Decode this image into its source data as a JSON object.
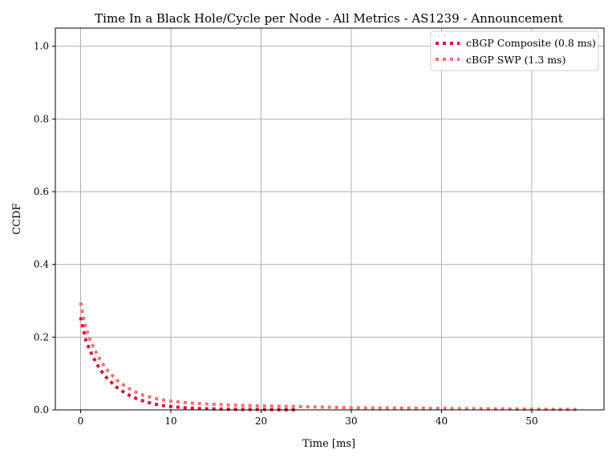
{
  "chart_data": {
    "type": "line",
    "title": "Time In a Black Hole/Cycle per Node - All Metrics - AS1239 - Announcement",
    "xlabel": "Time [ms]",
    "ylabel": "CCDF",
    "xlim": [
      -2.8,
      58
    ],
    "ylim": [
      0,
      1.05
    ],
    "xticks": [
      0,
      10,
      20,
      30,
      40,
      50
    ],
    "yticks": [
      0.0,
      0.2,
      0.4,
      0.6,
      0.8,
      1.0
    ],
    "xtick_labels": [
      "0",
      "10",
      "20",
      "30",
      "40",
      "50"
    ],
    "ytick_labels": [
      "0.0",
      "0.2",
      "0.4",
      "0.6",
      "0.8",
      "1.0"
    ],
    "grid": true,
    "legend_position": "top-right",
    "line_style": "dotted",
    "series": [
      {
        "name": "cBGP Composite (0.8 ms)",
        "color": "#d7113a",
        "x": [
          0,
          0.3,
          0.6,
          1,
          1.5,
          2,
          2.5,
          3,
          4,
          5,
          6,
          7,
          8,
          9,
          10,
          11,
          12,
          13,
          14,
          15,
          16,
          17,
          18,
          19,
          20,
          21,
          22,
          23,
          24
        ],
        "y": [
          0.255,
          0.22,
          0.19,
          0.165,
          0.14,
          0.118,
          0.1,
          0.085,
          0.062,
          0.045,
          0.033,
          0.024,
          0.017,
          0.012,
          0.009,
          0.007,
          0.005,
          0.004,
          0.003,
          0.0025,
          0.002,
          0.0015,
          0.0012,
          0.001,
          0.0008,
          0.0006,
          0.0005,
          0.0003,
          0.0002
        ]
      },
      {
        "name": "cBGP SWP (1.3 ms)",
        "color": "#f07272",
        "x": [
          0,
          0.3,
          0.6,
          1,
          1.5,
          2,
          2.5,
          3,
          4,
          5,
          6,
          7,
          8,
          9,
          10,
          12,
          14,
          16,
          18,
          20,
          22,
          24,
          26,
          28,
          30,
          32,
          35,
          38,
          40,
          42,
          45,
          48,
          50,
          52,
          55
        ],
        "y": [
          0.295,
          0.255,
          0.225,
          0.195,
          0.168,
          0.145,
          0.125,
          0.108,
          0.082,
          0.064,
          0.05,
          0.04,
          0.033,
          0.028,
          0.024,
          0.019,
          0.016,
          0.014,
          0.012,
          0.011,
          0.01,
          0.009,
          0.008,
          0.007,
          0.006,
          0.0055,
          0.005,
          0.0045,
          0.004,
          0.0035,
          0.003,
          0.0025,
          0.002,
          0.0015,
          0.001
        ]
      }
    ]
  }
}
